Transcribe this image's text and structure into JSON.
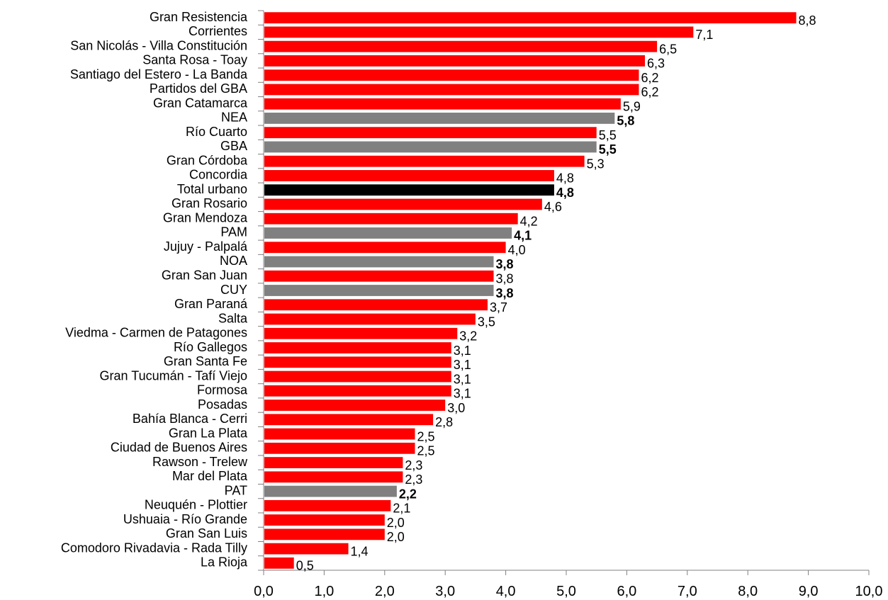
{
  "chart_data": {
    "type": "bar",
    "orientation": "horizontal",
    "title": "",
    "xlabel": "",
    "ylabel": "",
    "xlim": [
      0,
      10
    ],
    "x_ticks": [
      "0,0",
      "1,0",
      "2,0",
      "3,0",
      "4,0",
      "5,0",
      "6,0",
      "7,0",
      "8,0",
      "9,0",
      "10,0"
    ],
    "grid": false,
    "legend": "none",
    "colors": {
      "city": "#ff0000",
      "region": "#808080",
      "total": "#000000",
      "axis": "#808080"
    },
    "bars": [
      {
        "category": "Gran Resistencia",
        "value": 8.8,
        "label": "8,8",
        "group": "city"
      },
      {
        "category": "Corrientes",
        "value": 7.1,
        "label": "7,1",
        "group": "city"
      },
      {
        "category": "San Nicolás - Villa Constitución",
        "value": 6.5,
        "label": "6,5",
        "group": "city"
      },
      {
        "category": "Santa Rosa - Toay",
        "value": 6.3,
        "label": "6,3",
        "group": "city"
      },
      {
        "category": "Santiago del Estero - La Banda",
        "value": 6.2,
        "label": "6,2",
        "group": "city"
      },
      {
        "category": "Partidos del GBA",
        "value": 6.2,
        "label": "6,2",
        "group": "city"
      },
      {
        "category": "Gran Catamarca",
        "value": 5.9,
        "label": "5,9",
        "group": "city"
      },
      {
        "category": "NEA",
        "value": 5.8,
        "label": "5,8",
        "group": "region"
      },
      {
        "category": "Río Cuarto",
        "value": 5.5,
        "label": "5,5",
        "group": "city"
      },
      {
        "category": "GBA",
        "value": 5.5,
        "label": "5,5",
        "group": "region"
      },
      {
        "category": "Gran Córdoba",
        "value": 5.3,
        "label": "5,3",
        "group": "city"
      },
      {
        "category": "Concordia",
        "value": 4.8,
        "label": "4,8",
        "group": "city"
      },
      {
        "category": "Total urbano",
        "value": 4.8,
        "label": "4,8",
        "group": "total"
      },
      {
        "category": "Gran Rosario",
        "value": 4.6,
        "label": "4,6",
        "group": "city"
      },
      {
        "category": "Gran Mendoza",
        "value": 4.2,
        "label": "4,2",
        "group": "city"
      },
      {
        "category": "PAM",
        "value": 4.1,
        "label": "4,1",
        "group": "region"
      },
      {
        "category": "Jujuy - Palpalá",
        "value": 4.0,
        "label": "4,0",
        "group": "city"
      },
      {
        "category": "NOA",
        "value": 3.8,
        "label": "3,8",
        "group": "region"
      },
      {
        "category": "Gran San Juan",
        "value": 3.8,
        "label": "3,8",
        "group": "city"
      },
      {
        "category": "CUY",
        "value": 3.8,
        "label": "3,8",
        "group": "region"
      },
      {
        "category": "Gran Paraná",
        "value": 3.7,
        "label": "3,7",
        "group": "city"
      },
      {
        "category": "Salta",
        "value": 3.5,
        "label": "3,5",
        "group": "city"
      },
      {
        "category": "Viedma - Carmen de Patagones",
        "value": 3.2,
        "label": "3,2",
        "group": "city"
      },
      {
        "category": "Río Gallegos",
        "value": 3.1,
        "label": "3,1",
        "group": "city"
      },
      {
        "category": "Gran Santa Fe",
        "value": 3.1,
        "label": "3,1",
        "group": "city"
      },
      {
        "category": "Gran Tucumán - Tafí Viejo",
        "value": 3.1,
        "label": "3,1",
        "group": "city"
      },
      {
        "category": "Formosa",
        "value": 3.1,
        "label": "3,1",
        "group": "city"
      },
      {
        "category": "Posadas",
        "value": 3.0,
        "label": "3,0",
        "group": "city"
      },
      {
        "category": "Bahía Blanca - Cerri",
        "value": 2.8,
        "label": "2,8",
        "group": "city"
      },
      {
        "category": "Gran La Plata",
        "value": 2.5,
        "label": "2,5",
        "group": "city"
      },
      {
        "category": "Ciudad de Buenos Aires",
        "value": 2.5,
        "label": "2,5",
        "group": "city"
      },
      {
        "category": "Rawson - Trelew",
        "value": 2.3,
        "label": "2,3",
        "group": "city"
      },
      {
        "category": "Mar del Plata",
        "value": 2.3,
        "label": "2,3",
        "group": "city"
      },
      {
        "category": "PAT",
        "value": 2.2,
        "label": "2,2",
        "group": "region"
      },
      {
        "category": "Neuquén - Plottier",
        "value": 2.1,
        "label": "2,1",
        "group": "city"
      },
      {
        "category": "Ushuaia - Río Grande",
        "value": 2.0,
        "label": "2,0",
        "group": "city"
      },
      {
        "category": "Gran San Luis",
        "value": 2.0,
        "label": "2,0",
        "group": "city"
      },
      {
        "category": "Comodoro Rivadavia - Rada Tilly",
        "value": 1.4,
        "label": "1,4",
        "group": "city"
      },
      {
        "category": "La Rioja",
        "value": 0.5,
        "label": "0,5",
        "group": "city"
      }
    ]
  }
}
